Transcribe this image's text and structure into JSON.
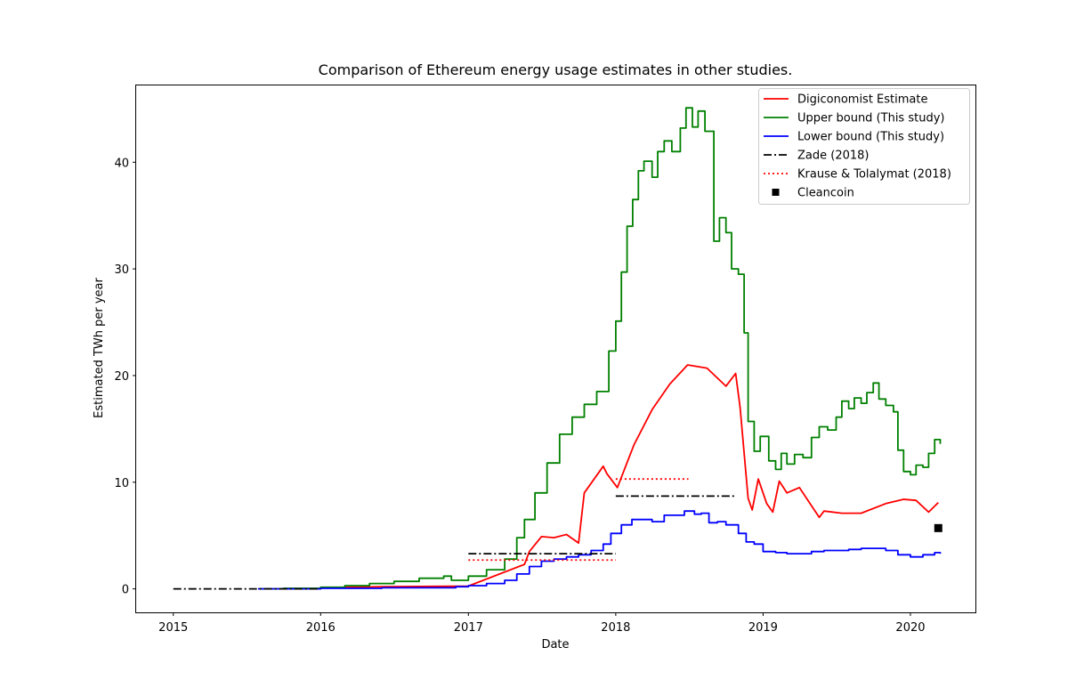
{
  "chart_data": {
    "type": "line",
    "title": "Comparison of Ethereum energy usage estimates in other studies.",
    "xlabel": "Date",
    "ylabel": "Estimated TWh per year",
    "x_ticks": [
      "2015",
      "2016",
      "2017",
      "2018",
      "2019",
      "2020"
    ],
    "y_ticks": [
      "0",
      "10",
      "20",
      "30",
      "40"
    ],
    "xlim": [
      "2014-10-01",
      "2020-06-10"
    ],
    "ylim": [
      -2.2,
      47.2
    ],
    "grid": false,
    "legend_position": "top-right",
    "series": [
      {
        "name": "Digiconomist Estimate",
        "color": "#ff0000",
        "style": "solid",
        "points": [
          [
            "2016-01-01",
            0.1
          ],
          [
            "2016-06-01",
            0.2
          ],
          [
            "2016-12-31",
            0.25
          ],
          [
            "2017-05-20",
            2.3
          ],
          [
            "2017-06-01",
            3.5
          ],
          [
            "2017-07-01",
            4.9
          ],
          [
            "2017-08-01",
            4.8
          ],
          [
            "2017-09-01",
            5.1
          ],
          [
            "2017-10-01",
            4.3
          ],
          [
            "2017-10-15",
            9.0
          ],
          [
            "2017-12-01",
            11.5
          ],
          [
            "2017-12-10",
            10.8
          ],
          [
            "2018-01-05",
            9.5
          ],
          [
            "2018-02-15",
            13.5
          ],
          [
            "2018-04-01",
            16.8
          ],
          [
            "2018-05-15",
            19.2
          ],
          [
            "2018-06-28",
            21.0
          ],
          [
            "2018-08-15",
            20.7
          ],
          [
            "2018-10-01",
            19.0
          ],
          [
            "2018-10-25",
            20.2
          ],
          [
            "2018-11-05",
            17.0
          ],
          [
            "2018-11-25",
            8.5
          ],
          [
            "2018-12-05",
            7.4
          ],
          [
            "2018-12-20",
            10.3
          ],
          [
            "2019-01-10",
            8.0
          ],
          [
            "2019-01-25",
            7.2
          ],
          [
            "2019-02-10",
            10.1
          ],
          [
            "2019-03-01",
            9.0
          ],
          [
            "2019-04-01",
            9.5
          ],
          [
            "2019-05-20",
            6.7
          ],
          [
            "2019-06-01",
            7.3
          ],
          [
            "2019-07-15",
            7.1
          ],
          [
            "2019-09-01",
            7.1
          ],
          [
            "2019-11-01",
            8.0
          ],
          [
            "2019-12-15",
            8.4
          ],
          [
            "2020-01-15",
            8.3
          ],
          [
            "2020-02-15",
            7.2
          ],
          [
            "2020-03-10",
            8.1
          ]
        ]
      },
      {
        "name": "Upper bound (This study)",
        "color": "#008000",
        "style": "step",
        "points": [
          [
            "2015-07-30",
            0.0
          ],
          [
            "2015-10-01",
            0.05
          ],
          [
            "2016-01-01",
            0.15
          ],
          [
            "2016-03-01",
            0.3
          ],
          [
            "2016-05-01",
            0.5
          ],
          [
            "2016-07-01",
            0.7
          ],
          [
            "2016-09-01",
            1.0
          ],
          [
            "2016-11-01",
            1.2
          ],
          [
            "2016-11-20",
            0.8
          ],
          [
            "2017-01-01",
            1.2
          ],
          [
            "2017-02-15",
            1.8
          ],
          [
            "2017-04-01",
            2.8
          ],
          [
            "2017-05-01",
            4.8
          ],
          [
            "2017-05-20",
            6.5
          ],
          [
            "2017-06-15",
            9.0
          ],
          [
            "2017-07-15",
            11.8
          ],
          [
            "2017-08-15",
            14.5
          ],
          [
            "2017-09-15",
            16.1
          ],
          [
            "2017-10-15",
            17.3
          ],
          [
            "2017-11-15",
            18.5
          ],
          [
            "2017-12-15",
            22.3
          ],
          [
            "2018-01-01",
            25.1
          ],
          [
            "2018-01-15",
            29.7
          ],
          [
            "2018-01-29",
            34.0
          ],
          [
            "2018-02-12",
            36.5
          ],
          [
            "2018-02-26",
            39.2
          ],
          [
            "2018-03-12",
            40.1
          ],
          [
            "2018-04-01",
            38.6
          ],
          [
            "2018-04-15",
            41.0
          ],
          [
            "2018-05-01",
            42.0
          ],
          [
            "2018-05-20",
            41.0
          ],
          [
            "2018-06-10",
            43.2
          ],
          [
            "2018-06-24",
            45.1
          ],
          [
            "2018-07-10",
            43.3
          ],
          [
            "2018-07-24",
            44.8
          ],
          [
            "2018-08-10",
            42.9
          ],
          [
            "2018-09-01",
            32.6
          ],
          [
            "2018-09-15",
            34.8
          ],
          [
            "2018-10-01",
            33.4
          ],
          [
            "2018-10-15",
            30.0
          ],
          [
            "2018-11-01",
            29.5
          ],
          [
            "2018-11-15",
            24.0
          ],
          [
            "2018-11-25",
            15.7
          ],
          [
            "2018-12-10",
            12.9
          ],
          [
            "2018-12-25",
            14.3
          ],
          [
            "2019-01-15",
            12.0
          ],
          [
            "2019-02-01",
            11.2
          ],
          [
            "2019-02-15",
            12.7
          ],
          [
            "2019-03-01",
            11.7
          ],
          [
            "2019-03-20",
            12.6
          ],
          [
            "2019-04-10",
            12.3
          ],
          [
            "2019-05-01",
            14.2
          ],
          [
            "2019-05-20",
            15.2
          ],
          [
            "2019-06-10",
            14.9
          ],
          [
            "2019-07-01",
            16.1
          ],
          [
            "2019-07-15",
            17.6
          ],
          [
            "2019-08-01",
            16.9
          ],
          [
            "2019-08-15",
            17.9
          ],
          [
            "2019-09-01",
            17.4
          ],
          [
            "2019-09-15",
            18.4
          ],
          [
            "2019-10-01",
            19.3
          ],
          [
            "2019-10-15",
            17.8
          ],
          [
            "2019-11-01",
            17.2
          ],
          [
            "2019-11-20",
            16.6
          ],
          [
            "2019-12-01",
            13.0
          ],
          [
            "2019-12-15",
            11.0
          ],
          [
            "2020-01-01",
            10.7
          ],
          [
            "2020-01-15",
            11.6
          ],
          [
            "2020-02-01",
            11.4
          ],
          [
            "2020-02-15",
            12.7
          ],
          [
            "2020-03-01",
            14.0
          ],
          [
            "2020-03-15",
            13.6
          ]
        ]
      },
      {
        "name": "Lower bound (This study)",
        "color": "#0000ff",
        "style": "step",
        "points": [
          [
            "2015-07-30",
            0.0
          ],
          [
            "2016-01-01",
            0.05
          ],
          [
            "2016-06-01",
            0.1
          ],
          [
            "2016-12-01",
            0.2
          ],
          [
            "2017-01-01",
            0.3
          ],
          [
            "2017-02-15",
            0.5
          ],
          [
            "2017-04-01",
            0.8
          ],
          [
            "2017-05-01",
            1.4
          ],
          [
            "2017-06-01",
            2.1
          ],
          [
            "2017-07-01",
            2.6
          ],
          [
            "2017-08-01",
            2.8
          ],
          [
            "2017-09-01",
            3.0
          ],
          [
            "2017-10-01",
            3.2
          ],
          [
            "2017-11-01",
            3.6
          ],
          [
            "2017-12-01",
            4.2
          ],
          [
            "2017-12-20",
            5.2
          ],
          [
            "2018-01-15",
            6.0
          ],
          [
            "2018-02-10",
            6.5
          ],
          [
            "2018-03-10",
            6.5
          ],
          [
            "2018-04-01",
            6.3
          ],
          [
            "2018-05-01",
            6.9
          ],
          [
            "2018-06-01",
            6.9
          ],
          [
            "2018-06-20",
            7.3
          ],
          [
            "2018-07-15",
            7.0
          ],
          [
            "2018-08-01",
            7.1
          ],
          [
            "2018-08-20",
            6.2
          ],
          [
            "2018-09-10",
            6.3
          ],
          [
            "2018-10-01",
            6.0
          ],
          [
            "2018-11-01",
            5.2
          ],
          [
            "2018-11-20",
            4.4
          ],
          [
            "2018-12-10",
            4.2
          ],
          [
            "2019-01-01",
            3.5
          ],
          [
            "2019-02-01",
            3.4
          ],
          [
            "2019-03-01",
            3.3
          ],
          [
            "2019-04-01",
            3.3
          ],
          [
            "2019-05-01",
            3.5
          ],
          [
            "2019-06-01",
            3.6
          ],
          [
            "2019-07-01",
            3.6
          ],
          [
            "2019-08-01",
            3.7
          ],
          [
            "2019-09-01",
            3.8
          ],
          [
            "2019-10-01",
            3.8
          ],
          [
            "2019-11-01",
            3.6
          ],
          [
            "2019-12-01",
            3.2
          ],
          [
            "2020-01-01",
            3.0
          ],
          [
            "2020-02-01",
            3.2
          ],
          [
            "2020-03-01",
            3.4
          ],
          [
            "2020-03-15",
            3.3
          ]
        ]
      },
      {
        "name": "Zade (2018)",
        "color": "#000000",
        "style": "dashdot",
        "segments": [
          {
            "x": [
              "2015-01-01",
              "2016-01-01"
            ],
            "y": 0.0
          },
          {
            "x": [
              "2017-01-01",
              "2018-01-01"
            ],
            "y": 3.3
          },
          {
            "x": [
              "2018-01-01",
              "2018-10-25"
            ],
            "y": 8.7
          }
        ]
      },
      {
        "name": "Krause & Tolalymat (2018)",
        "color": "#ff0000",
        "style": "dotted",
        "segments": [
          {
            "x": [
              "2017-01-01",
              "2018-01-01"
            ],
            "y": 2.7
          },
          {
            "x": [
              "2018-01-01",
              "2018-06-30"
            ],
            "y": 10.3
          }
        ]
      },
      {
        "name": "Cleancoin",
        "color": "#000000",
        "style": "marker",
        "points": [
          [
            "2020-03-10",
            5.7
          ]
        ]
      }
    ]
  }
}
